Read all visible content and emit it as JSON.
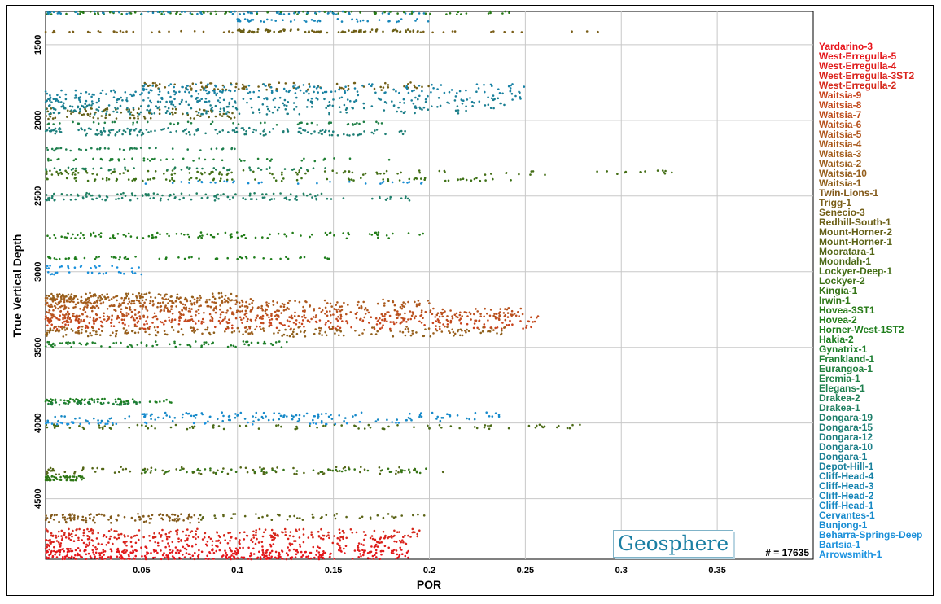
{
  "watermark": "Geosphere",
  "count_label": "# = 17635",
  "chart_data": {
    "type": "scatter",
    "xlabel": "POR",
    "ylabel": "True Vertical Depth",
    "xlim": [
      0,
      0.4
    ],
    "ylim": [
      4900,
      1280
    ],
    "y_inverted": true,
    "grid": true,
    "legend_position": "right",
    "x_ticks": [
      "0.05",
      "0.1",
      "0.15",
      "0.2",
      "0.25",
      "0.3",
      "0.35"
    ],
    "y_ticks": [
      "1500",
      "2000",
      "2500",
      "3000",
      "3500",
      "4000",
      "4500"
    ],
    "series": [
      {
        "name": "Yardarino-3",
        "color": "#e8141b",
        "depth": [
          4880,
          4900
        ],
        "x_range": [
          0.0,
          0.19
        ],
        "n": 140
      },
      {
        "name": "West-Erregulla-5",
        "color": "#e4171b",
        "depth": [
          4840,
          4880
        ],
        "x_range": [
          0.0,
          0.19
        ],
        "n": 160
      },
      {
        "name": "West-Erregulla-4",
        "color": "#df1c1b",
        "depth": [
          4800,
          4860
        ],
        "x_range": [
          0.0,
          0.19
        ],
        "n": 150
      },
      {
        "name": "West-Erregulla-3ST2",
        "color": "#da221b",
        "depth": [
          4740,
          4800
        ],
        "x_range": [
          0.0,
          0.195
        ],
        "n": 170
      },
      {
        "name": "West-Erregulla-2",
        "color": "#d5281b",
        "depth": [
          4700,
          4760
        ],
        "x_range": [
          0.0,
          0.195
        ],
        "n": 150
      },
      {
        "name": "Waitsia-9",
        "color": "#c8421b",
        "depth": [
          3320,
          3380
        ],
        "x_range": [
          0.0,
          0.26
        ],
        "n": 160
      },
      {
        "name": "Waitsia-8",
        "color": "#c2491c",
        "depth": [
          3290,
          3340
        ],
        "x_range": [
          0.0,
          0.26
        ],
        "n": 160
      },
      {
        "name": "Waitsia-7",
        "color": "#bd4d1c",
        "depth": [
          3260,
          3320
        ],
        "x_range": [
          0.0,
          0.25
        ],
        "n": 150
      },
      {
        "name": "Waitsia-6",
        "color": "#b7521d",
        "depth": [
          3240,
          3300
        ],
        "x_range": [
          0.0,
          0.25
        ],
        "n": 140
      },
      {
        "name": "Waitsia-5",
        "color": "#b0561d",
        "depth": [
          3200,
          3260
        ],
        "x_range": [
          0.0,
          0.2
        ],
        "n": 130
      },
      {
        "name": "Waitsia-4",
        "color": "#aa5a1d",
        "depth": [
          3180,
          3240
        ],
        "x_range": [
          0.0,
          0.2
        ],
        "n": 120
      },
      {
        "name": "Waitsia-3",
        "color": "#a45e1d",
        "depth": [
          3160,
          3210
        ],
        "x_range": [
          0.0,
          0.1
        ],
        "n": 100
      },
      {
        "name": "Waitsia-2",
        "color": "#9c5f1d",
        "depth": [
          3360,
          3410
        ],
        "x_range": [
          0.0,
          0.24
        ],
        "n": 120
      },
      {
        "name": "Waitsia-10",
        "color": "#955f1c",
        "depth": [
          3140,
          3190
        ],
        "x_range": [
          0.0,
          0.1
        ],
        "n": 90
      },
      {
        "name": "Waitsia-1",
        "color": "#8e5f1b",
        "depth": [
          3380,
          3430
        ],
        "x_range": [
          0.0,
          0.24
        ],
        "n": 100
      },
      {
        "name": "Twin-Lions-1",
        "color": "#82591a",
        "depth": [
          4600,
          4660
        ],
        "x_range": [
          0.0,
          0.08
        ],
        "n": 110
      },
      {
        "name": "Trigg-1",
        "color": "#7a5e18",
        "depth": [
          1410,
          1420
        ],
        "x_range": [
          0.0,
          0.3
        ],
        "n": 60
      },
      {
        "name": "Senecio-3",
        "color": "#735f17",
        "depth": [
          1750,
          1800
        ],
        "x_range": [
          0.05,
          0.2
        ],
        "n": 90
      },
      {
        "name": "Redhill-South-1",
        "color": "#6b5f16",
        "depth": [
          1400,
          1420
        ],
        "x_range": [
          0.1,
          0.2
        ],
        "n": 80
      },
      {
        "name": "Mount-Horner-2",
        "color": "#635f16",
        "depth": [
          1920,
          1990
        ],
        "x_range": [
          0.0,
          0.1
        ],
        "n": 90
      },
      {
        "name": "Mount-Horner-1",
        "color": "#5b6316",
        "depth": [
          4600,
          4640
        ],
        "x_range": [
          0.08,
          0.2
        ],
        "n": 50
      },
      {
        "name": "Mooratara-1",
        "color": "#536616",
        "depth": [
          4290,
          4340
        ],
        "x_range": [
          0.0,
          0.21
        ],
        "n": 90
      },
      {
        "name": "Moondah-1",
        "color": "#4b6a16",
        "depth": [
          4010,
          4040
        ],
        "x_range": [
          0.0,
          0.28
        ],
        "n": 100
      },
      {
        "name": "Lockyer-Deep-1",
        "color": "#446e16",
        "depth": [
          2330,
          2360
        ],
        "x_range": [
          0.0,
          0.33
        ],
        "n": 110
      },
      {
        "name": "Lockyer-2",
        "color": "#3d7116",
        "depth": [
          2380,
          2400
        ],
        "x_range": [
          0.0,
          0.25
        ],
        "n": 80
      },
      {
        "name": "Kingia-1",
        "color": "#357416",
        "depth": [
          4300,
          4330
        ],
        "x_range": [
          0.05,
          0.2
        ],
        "n": 60
      },
      {
        "name": "Irwin-1",
        "color": "#2e7716",
        "depth": [
          4350,
          4380
        ],
        "x_range": [
          0.0,
          0.02
        ],
        "n": 60
      },
      {
        "name": "Hovea-3ST1",
        "color": "#277a17",
        "depth": [
          1280,
          1300
        ],
        "x_range": [
          0.0,
          0.26
        ],
        "n": 80
      },
      {
        "name": "Hovea-2",
        "color": "#217c17",
        "depth": [
          2740,
          2780
        ],
        "x_range": [
          0.0,
          0.2
        ],
        "n": 110
      },
      {
        "name": "Horner-West-1ST2",
        "color": "#1f7e1c",
        "depth": [
          2900,
          2920
        ],
        "x_range": [
          0.0,
          0.15
        ],
        "n": 60
      },
      {
        "name": "Hakia-2",
        "color": "#1e7f22",
        "depth": [
          3840,
          3870
        ],
        "x_range": [
          0.0,
          0.07
        ],
        "n": 60
      },
      {
        "name": "Gynatrix-1",
        "color": "#1e7f2a",
        "depth": [
          3460,
          3500
        ],
        "x_range": [
          0.0,
          0.13
        ],
        "n": 80
      },
      {
        "name": "Frankland-1",
        "color": "#1e7f33",
        "depth": [
          2250,
          2270
        ],
        "x_range": [
          0.0,
          0.18
        ],
        "n": 50
      },
      {
        "name": "Eurangoa-1",
        "color": "#1e7f3c",
        "depth": [
          3860,
          3880
        ],
        "x_range": [
          0.0,
          0.05
        ],
        "n": 40
      },
      {
        "name": "Eremia-1",
        "color": "#1e7f45",
        "depth": [
          2010,
          2030
        ],
        "x_range": [
          0.0,
          0.18
        ],
        "n": 50
      },
      {
        "name": "Elegans-1",
        "color": "#1e7f4e",
        "depth": [
          2180,
          2200
        ],
        "x_range": [
          0.0,
          0.1
        ],
        "n": 40
      },
      {
        "name": "Drakea-2",
        "color": "#1e7f57",
        "depth": [
          2310,
          2330
        ],
        "x_range": [
          0.0,
          0.15
        ],
        "n": 50
      },
      {
        "name": "Drakea-1",
        "color": "#1e7f60",
        "depth": [
          2480,
          2500
        ],
        "x_range": [
          0.0,
          0.15
        ],
        "n": 60
      },
      {
        "name": "Dongara-19",
        "color": "#1e7f6a",
        "depth": [
          2500,
          2530
        ],
        "x_range": [
          0.0,
          0.19
        ],
        "n": 90
      },
      {
        "name": "Dongara-15",
        "color": "#1d7e74",
        "depth": [
          2060,
          2100
        ],
        "x_range": [
          0.0,
          0.19
        ],
        "n": 90
      },
      {
        "name": "Dongara-12",
        "color": "#1c7e7e",
        "depth": [
          2050,
          2080
        ],
        "x_range": [
          0.0,
          0.15
        ],
        "n": 70
      },
      {
        "name": "Dongara-10",
        "color": "#1b7e88",
        "depth": [
          1900,
          1960
        ],
        "x_range": [
          0.0,
          0.22
        ],
        "n": 120
      },
      {
        "name": "Dongara-1",
        "color": "#1a7e92",
        "depth": [
          1850,
          1920
        ],
        "x_range": [
          0.0,
          0.24
        ],
        "n": 140
      },
      {
        "name": "Depot-Hill-1",
        "color": "#19809c",
        "depth": [
          1800,
          1880
        ],
        "x_range": [
          0.0,
          0.25
        ],
        "n": 140
      },
      {
        "name": "Cliff-Head-4",
        "color": "#1882a6",
        "depth": [
          1760,
          1820
        ],
        "x_range": [
          0.05,
          0.25
        ],
        "n": 120
      },
      {
        "name": "Cliff-Head-3",
        "color": "#1784b0",
        "depth": [
          1280,
          1300
        ],
        "x_range": [
          0.0,
          0.2
        ],
        "n": 70
      },
      {
        "name": "Cliff-Head-2",
        "color": "#1786ba",
        "depth": [
          1330,
          1350
        ],
        "x_range": [
          0.1,
          0.2
        ],
        "n": 50
      },
      {
        "name": "Cliff-Head-1",
        "color": "#1688c4",
        "depth": [
          3950,
          3990
        ],
        "x_range": [
          0.0,
          0.23
        ],
        "n": 90
      },
      {
        "name": "Cervantes-1",
        "color": "#168acc",
        "depth": [
          3930,
          3960
        ],
        "x_range": [
          0.05,
          0.24
        ],
        "n": 60
      },
      {
        "name": "Bunjong-1",
        "color": "#178cd2",
        "depth": [
          2400,
          2420
        ],
        "x_range": [
          0.05,
          0.2
        ],
        "n": 30
      },
      {
        "name": "Beharra-Springs-Deep",
        "color": "#188ed8",
        "depth": [
          3000,
          3020
        ],
        "x_range": [
          0.0,
          0.05
        ],
        "n": 20
      },
      {
        "name": "Bartsia-1",
        "color": "#1990dc",
        "depth": [
          2960,
          2980
        ],
        "x_range": [
          0.0,
          0.05
        ],
        "n": 20
      },
      {
        "name": "Arrowsmith-1",
        "color": "#1a92e0",
        "depth": [
          3990,
          4010
        ],
        "x_range": [
          0.0,
          0.2
        ],
        "n": 40
      }
    ]
  }
}
